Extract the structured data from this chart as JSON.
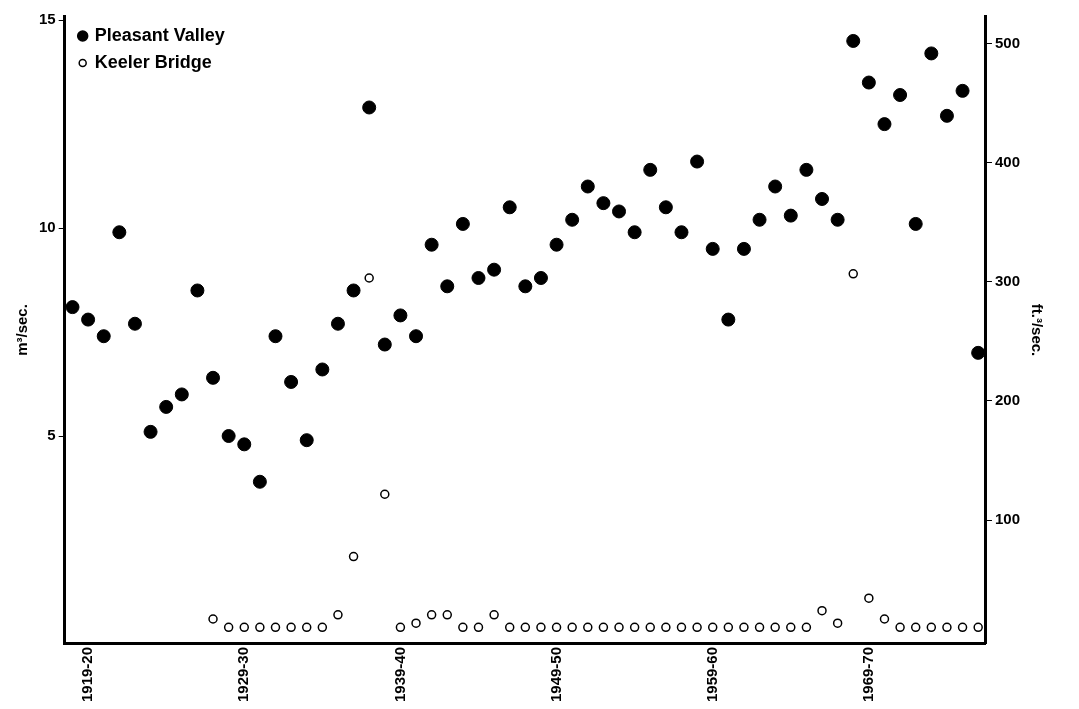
{
  "chart_data": {
    "type": "scatter",
    "ylabel": "m³/sec.",
    "y2label": "ft.³/sec.",
    "categories": [
      null,
      "1919-20",
      null,
      null,
      null,
      null,
      null,
      null,
      null,
      null,
      null,
      "1929-30",
      null,
      null,
      null,
      null,
      null,
      null,
      null,
      null,
      null,
      "1939-40",
      null,
      null,
      null,
      null,
      null,
      null,
      null,
      null,
      null,
      "1949-50",
      null,
      null,
      null,
      null,
      null,
      null,
      null,
      null,
      null,
      "1959-60",
      null,
      null,
      null,
      null,
      null,
      null,
      null,
      null,
      null,
      "1969-70",
      null,
      null,
      null,
      null,
      null,
      null,
      null
    ],
    "series": [
      {
        "name": "Pleasant Valley",
        "color": "#000000",
        "values": [
          8.1,
          7.8,
          7.4,
          9.9,
          7.7,
          5.1,
          5.7,
          6.0,
          8.5,
          6.4,
          5.0,
          4.8,
          3.9,
          7.4,
          6.3,
          4.9,
          6.6,
          7.7,
          8.5,
          12.9,
          7.2,
          7.9,
          7.4,
          9.6,
          8.6,
          10.1,
          8.8,
          9.0,
          10.5,
          8.6,
          8.8,
          9.6,
          10.2,
          11.0,
          10.6,
          10.4,
          9.9,
          11.4,
          10.5,
          9.9,
          11.6,
          9.5,
          7.8,
          9.5,
          10.2,
          11.0,
          10.3,
          11.4,
          10.7,
          10.2,
          14.5,
          13.5,
          12.5,
          13.2,
          10.1,
          14.2,
          12.7,
          13.3,
          7.0
        ]
      },
      {
        "name": "Keeler Bridge",
        "color": "#000000",
        "values": [
          null,
          null,
          null,
          null,
          null,
          null,
          null,
          null,
          null,
          0.6,
          0.4,
          0.4,
          0.4,
          0.4,
          0.4,
          0.4,
          0.4,
          0.7,
          2.1,
          8.8,
          3.6,
          0.4,
          0.5,
          0.7,
          0.7,
          0.4,
          0.4,
          0.7,
          0.4,
          0.4,
          0.4,
          0.4,
          0.4,
          0.4,
          0.4,
          0.4,
          0.4,
          0.4,
          0.4,
          0.4,
          0.4,
          0.4,
          0.4,
          0.4,
          0.4,
          0.4,
          0.4,
          0.4,
          0.8,
          0.5,
          8.9,
          1.1,
          0.6,
          0.4,
          0.4,
          0.4,
          0.4,
          0.4,
          0.4
        ]
      }
    ],
    "ylim": [
      0,
      15.1
    ],
    "yticks": [
      5,
      10,
      15
    ],
    "y2lim": [
      -4,
      523
    ],
    "y2ticks": [
      100,
      200,
      300,
      400,
      500
    ],
    "grid": false,
    "legend": "top left",
    "marker": "circle"
  }
}
